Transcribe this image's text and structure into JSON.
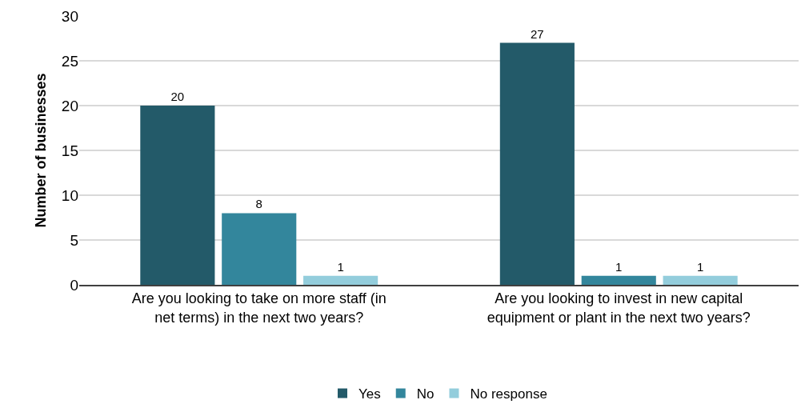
{
  "chart_data": {
    "type": "bar",
    "ylabel": "Number of businesses",
    "categories": [
      "Are you looking to take on more staff (in net terms) in the next two years?",
      "Are you looking to invest in new capital equipment or plant in the next two years?"
    ],
    "series": [
      {
        "name": "Yes",
        "color": "#235a69",
        "values": [
          20,
          27
        ]
      },
      {
        "name": "No",
        "color": "#33869c",
        "values": [
          8,
          1
        ]
      },
      {
        "name": "No response",
        "color": "#93cddc",
        "values": [
          1,
          1
        ]
      }
    ],
    "ylim": [
      0,
      30
    ],
    "yticks": [
      0,
      5,
      10,
      15,
      20,
      25,
      30
    ],
    "grid": "y",
    "legend": "bottom",
    "data_labels": true
  }
}
